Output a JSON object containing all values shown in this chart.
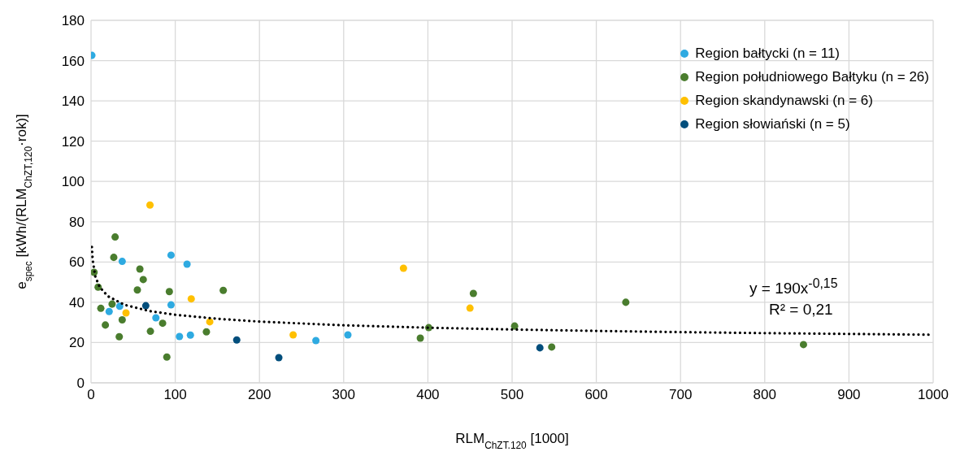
{
  "chart_data": {
    "type": "scatter",
    "xlabel": "RLM$_{ChZT.120}$ [1000]",
    "ylabel": "e$_{spec}$ [kWh/(RLM$_{ChZT,120}$·rok)]",
    "xlim": [
      0,
      1000
    ],
    "xticks": [
      0,
      100,
      200,
      300,
      400,
      500,
      600,
      700,
      800,
      900,
      1000
    ],
    "ylim": [
      0,
      180
    ],
    "yticks": [
      0,
      20,
      40,
      60,
      80,
      100,
      120,
      140,
      160,
      180
    ],
    "grid": true,
    "legend": "top right",
    "marker": "circle",
    "annotations": [
      "y = 190x$^{-0,15}$",
      "R² = 0,21"
    ],
    "series": [
      {
        "name": "Region bałtycki (n = 11)",
        "color": "#2eaae1",
        "x": [
          1,
          37,
          95,
          114,
          95,
          21.5,
          34,
          77,
          105,
          118,
          267,
          305
        ],
        "values": [
          162.6,
          60.3,
          63.4,
          58.9,
          38.7,
          35.4,
          38,
          32.3,
          23,
          23.7,
          21,
          23.8
        ]
      },
      {
        "name": "Region południowego Bałtyku (n = 26)",
        "color": "#4a7d2e",
        "x": [
          28.6,
          27,
          3.6,
          58,
          62,
          55,
          8.4,
          93,
          157,
          11.6,
          25,
          37,
          17,
          85,
          70.5,
          33.5,
          137,
          90,
          391,
          401,
          454,
          503,
          547,
          635,
          846
        ],
        "values": [
          72.4,
          62.3,
          54.9,
          56.5,
          51.3,
          46.1,
          47.5,
          45.3,
          45.9,
          37,
          39.1,
          31.3,
          28.7,
          29.6,
          25.6,
          22.9,
          25.3,
          12.8,
          22.2,
          27.4,
          44.4,
          28.2,
          17.8,
          40,
          19
        ]
      },
      {
        "name": "Region skandynawski (n = 6)",
        "color": "#ffc000",
        "x": [
          70,
          119,
          41.5,
          141,
          240,
          371,
          450
        ],
        "values": [
          88.3,
          41.7,
          34.7,
          30.3,
          23.8,
          56.9,
          37.1
        ]
      },
      {
        "name": "Region słowiański (n = 5)",
        "color": "#024e7c",
        "x": [
          65,
          173,
          223,
          533
        ],
        "values": [
          38.3,
          21.3,
          12.5,
          17.4
        ]
      },
      {
        "type": "line",
        "color": "#000000",
        "line_style": "dotted",
        "marker": "none",
        "x": [
          1,
          2,
          5,
          10,
          20,
          40,
          70,
          100,
          150,
          200,
          300,
          400,
          500,
          600,
          700,
          800,
          900,
          1000
        ],
        "values": [
          67.5,
          60.8,
          52.9,
          47.7,
          43.0,
          38.7,
          35.6,
          33.8,
          31.8,
          30.4,
          28.6,
          27.4,
          26.5,
          25.8,
          25.2,
          24.7,
          24.3,
          23.9
        ]
      }
    ]
  }
}
